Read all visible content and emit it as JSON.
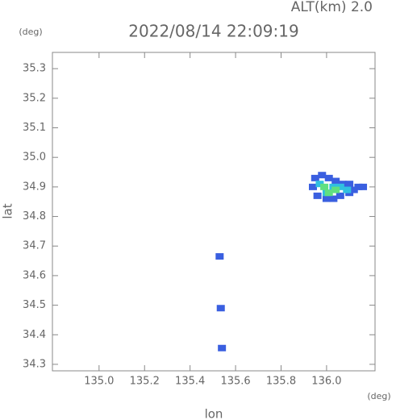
{
  "chart_data": {
    "type": "scatter",
    "title": "2022/08/14 22:09:19",
    "subtitle": "ALT(km) 2.0",
    "x_label": "lon",
    "y_label": "lat",
    "x_unit": "(deg)",
    "y_unit": "(deg)",
    "xlim": [
      134.795,
      136.213
    ],
    "ylim": [
      34.278,
      35.355
    ],
    "xticks": [
      {
        "value": 135.0,
        "label": "135.0"
      },
      135.2,
      135.4,
      135.6,
      135.8,
      {
        "value": 136.0,
        "label": "136.0"
      }
    ],
    "yticks": [
      35.3,
      35.2,
      35.1,
      {
        "value": 35.0,
        "label": "35.0"
      },
      34.9,
      34.8,
      34.7,
      34.6,
      34.5,
      34.4,
      34.3
    ],
    "series": [
      {
        "color": "#3a5fe0",
        "x": [
          135.95,
          135.98,
          136.01,
          136.04,
          136.07,
          136.1,
          136.14,
          136.16,
          135.94,
          135.96,
          136.0,
          136.03,
          136.06,
          136.1,
          136.12,
          135.53,
          135.535,
          135.54
        ],
        "y": [
          34.93,
          34.94,
          34.93,
          34.92,
          34.91,
          34.91,
          34.9,
          34.9,
          34.9,
          34.87,
          34.86,
          34.86,
          34.87,
          34.88,
          34.89,
          34.665,
          34.49,
          34.355
        ]
      },
      {
        "color": "#30c0e0",
        "x": [
          135.97,
          136.03,
          136.06,
          136.09,
          136.0
        ],
        "y": [
          34.91,
          34.9,
          34.9,
          34.89,
          34.88
        ]
      },
      {
        "color": "#60e080",
        "x": [
          135.99,
          136.01,
          136.04
        ],
        "y": [
          34.9,
          34.88,
          34.89
        ]
      }
    ]
  }
}
